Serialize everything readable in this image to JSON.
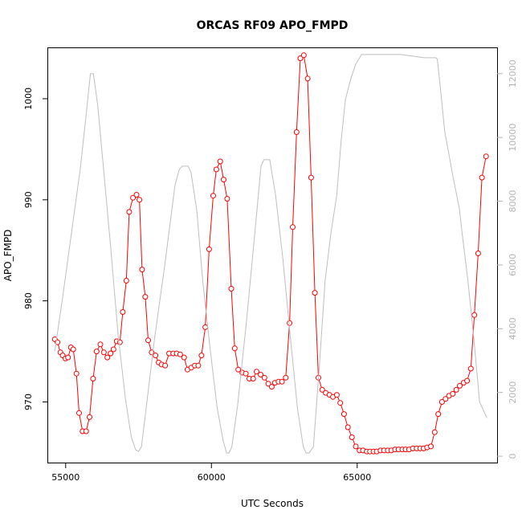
{
  "chart_data": {
    "type": "line",
    "title": "ORCAS RF09 APO_FMPD",
    "xlabel": "UTC Seconds",
    "ylabel": "APO_FMPD",
    "xlim": [
      54400,
      69800
    ],
    "ylim": [
      964,
      1005
    ],
    "y2lim": [
      -200,
      12800
    ],
    "x_ticks": [
      55000,
      60000,
      65000
    ],
    "x_tick_labels": [
      "55000",
      "60000",
      "65000"
    ],
    "y_ticks": [
      970,
      980,
      990,
      1000
    ],
    "y_tick_labels": [
      "970",
      "980",
      "990",
      "1000"
    ],
    "y2_ticks": [
      0,
      2000,
      4000,
      6000,
      8000,
      10000,
      12000
    ],
    "y2_tick_labels": [
      "0",
      "2000",
      "4000",
      "6000",
      "8000",
      "10000",
      "12000"
    ],
    "grid": false,
    "series": [
      {
        "name": "",
        "color": "#ff0000",
        "marker": "open-circle",
        "axis": "left",
        "x": [
          54630,
          54720,
          54820,
          54900,
          54990,
          55080,
          55180,
          55260,
          55370,
          55460,
          55580,
          55700,
          55820,
          55940,
          56060,
          56190,
          56310,
          56430,
          56540,
          56640,
          56750,
          56860,
          56960,
          57080,
          57180,
          57310,
          57430,
          57530,
          57620,
          57730,
          57830,
          57950,
          58080,
          58190,
          58290,
          58410,
          58550,
          58690,
          58810,
          58930,
          59060,
          59180,
          59310,
          59430,
          59550,
          59660,
          59790,
          59920,
          60060,
          60170,
          60300,
          60420,
          60540,
          60680,
          60800,
          60920,
          61060,
          61180,
          61300,
          61430,
          61550,
          61690,
          61820,
          61950,
          62070,
          62180,
          62300,
          62420,
          62550,
          62680,
          62790,
          62920,
          63050,
          63170,
          63300,
          63420,
          63550,
          63670,
          63800,
          63920,
          64050,
          64170,
          64300,
          64420,
          64550,
          64680,
          64820,
          64950,
          65080,
          65200,
          65330,
          65440,
          65560,
          65670,
          65800,
          65920,
          66050,
          66170,
          66300,
          66420,
          66550,
          66660,
          66780,
          66910,
          67040,
          67160,
          67280,
          67400,
          67530,
          67660,
          67780,
          67910,
          68030,
          68150,
          68280,
          68400,
          68520,
          68650,
          68770,
          68900,
          69020,
          69150,
          69280,
          69420
        ],
        "y": [
          976.2,
          975.9,
          974.9,
          974.6,
          974.3,
          974.4,
          975.4,
          975.2,
          972.8,
          968.9,
          967.1,
          967.1,
          968.5,
          972.3,
          975.0,
          975.7,
          974.9,
          974.4,
          974.8,
          975.2,
          976.0,
          975.9,
          978.9,
          982.0,
          988.8,
          990.2,
          990.5,
          990.0,
          983.1,
          980.4,
          976.1,
          974.9,
          974.6,
          973.9,
          973.7,
          973.6,
          974.8,
          974.8,
          974.8,
          974.7,
          974.4,
          973.2,
          973.4,
          973.6,
          973.6,
          974.6,
          977.4,
          985.1,
          990.4,
          993.0,
          993.8,
          992.0,
          990.1,
          981.2,
          975.3,
          973.2,
          972.9,
          972.8,
          972.3,
          972.3,
          973.0,
          972.7,
          972.4,
          971.8,
          971.5,
          971.9,
          972.0,
          972.0,
          972.4,
          977.8,
          987.3,
          996.7,
          1004.0,
          1004.3,
          1002.0,
          992.2,
          980.8,
          972.4,
          971.2,
          970.9,
          970.7,
          970.5,
          970.7,
          969.9,
          968.8,
          967.5,
          966.5,
          965.6,
          965.2,
          965.2,
          965.1,
          965.1,
          965.1,
          965.1,
          965.2,
          965.2,
          965.2,
          965.2,
          965.3,
          965.3,
          965.3,
          965.3,
          965.3,
          965.4,
          965.4,
          965.4,
          965.4,
          965.5,
          965.6,
          967.0,
          968.8,
          970.0,
          970.3,
          970.6,
          970.8,
          971.2,
          971.6,
          971.9,
          972.1,
          973.3,
          978.6,
          984.7,
          992.2,
          994.3
        ]
      },
      {
        "name": "",
        "color": "#bebebe",
        "marker": "none",
        "axis": "right",
        "x": [
          54630,
          54900,
          55200,
          55500,
          55700,
          55850,
          55950,
          56100,
          56300,
          56550,
          56800,
          57050,
          57250,
          57400,
          57500,
          57600,
          57800,
          58050,
          58400,
          58750,
          58900,
          59000,
          59200,
          59300,
          59500,
          59700,
          59950,
          60200,
          60400,
          60520,
          60600,
          60700,
          60900,
          61200,
          61500,
          61700,
          61800,
          62000,
          62200,
          62450,
          62700,
          62950,
          63150,
          63250,
          63350,
          63500,
          63700,
          63900,
          64100,
          64300,
          64450,
          64600,
          64800,
          64950,
          65150,
          65300,
          65700,
          66100,
          66500,
          66900,
          67300,
          67700,
          67750,
          67850,
          68000,
          68300,
          68500,
          68600,
          68800,
          69000,
          69200,
          69450
        ],
        "y": [
          3300,
          5000,
          7000,
          9000,
          10700,
          12000,
          12000,
          11000,
          9000,
          6500,
          3800,
          1800,
          600,
          200,
          150,
          300,
          1800,
          3700,
          6000,
          8500,
          9000,
          9100,
          9100,
          8900,
          7700,
          5500,
          3400,
          1500,
          500,
          100,
          100,
          300,
          1600,
          4200,
          7100,
          9100,
          9300,
          9300,
          8200,
          6200,
          3800,
          1500,
          300,
          100,
          100,
          300,
          2800,
          5500,
          7000,
          8200,
          9900,
          11200,
          11900,
          12300,
          12600,
          12600,
          12600,
          12600,
          12600,
          12550,
          12500,
          12500,
          12450,
          11600,
          10200,
          8700,
          7800,
          7000,
          5500,
          3700,
          1700,
          1200
        ]
      }
    ]
  }
}
